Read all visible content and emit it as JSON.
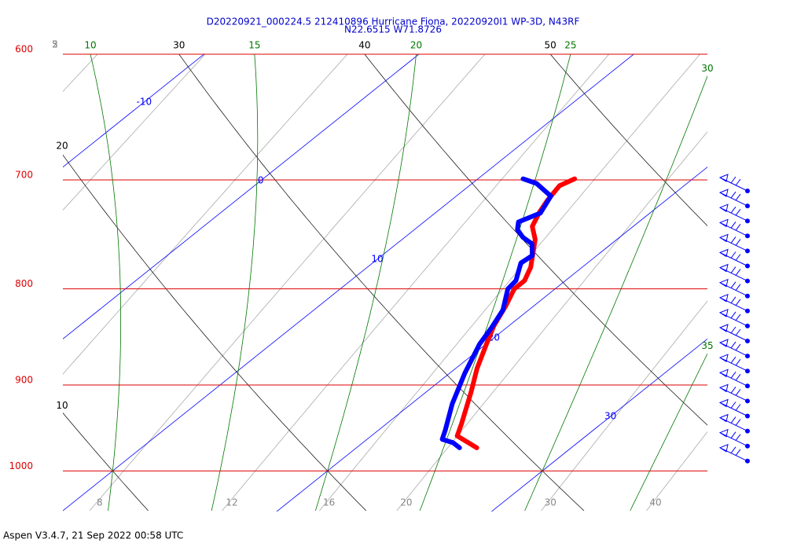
{
  "chart_data": {
    "type": "skew-t",
    "title": "D20220921_000224.5 212410896 Hurricane Fiona, 20220920I1 WP-3D, N43RF",
    "subtitle": "N22.6515 W71.8726",
    "footer": "Aspen V3.4.7, 21 Sep 2022  00:58 UTC",
    "ylim": [
      600,
      1050
    ],
    "yticks": [
      600,
      700,
      800,
      900,
      1000
    ],
    "log_scale": true,
    "xlim": [
      10,
      40
    ],
    "isotherms": [
      -10,
      0,
      10,
      20,
      30
    ],
    "dry_adiabats": [
      10,
      20,
      30,
      40,
      50
    ],
    "moist_adiabats": [
      10,
      15,
      20,
      25,
      30,
      35
    ],
    "mixing_ratios": [
      2,
      3,
      5,
      8,
      12,
      16,
      20,
      30,
      40
    ],
    "series": [
      {
        "color": "#ff0000",
        "pressure": [
          699,
          705,
          718,
          728,
          741,
          753,
          779,
          792,
          800,
          817,
          837,
          853,
          882,
          908,
          944,
          958,
          972
        ],
        "values": [
          14.5,
          14.2,
          14.5,
          14.8,
          15.3,
          16.2,
          17.6,
          18.1,
          18.1,
          18.7,
          19.3,
          19.9,
          21.0,
          22.1,
          23.5,
          24.0,
          25.6
        ]
      },
      {
        "color": "#0000ff",
        "pressure": [
          699,
          703,
          714,
          729,
          737,
          744,
          751,
          757,
          768,
          775,
          792,
          800,
          821,
          839,
          856,
          887,
          921,
          951,
          962,
          966,
          972
        ],
        "values": [
          12.1,
          13.0,
          14.4,
          14.9,
          14.4,
          14.8,
          15.5,
          16.3,
          17.0,
          16.9,
          17.7,
          17.8,
          18.8,
          19.3,
          19.7,
          20.7,
          21.9,
          23.1,
          23.5,
          24.2,
          24.8
        ]
      }
    ]
  }
}
